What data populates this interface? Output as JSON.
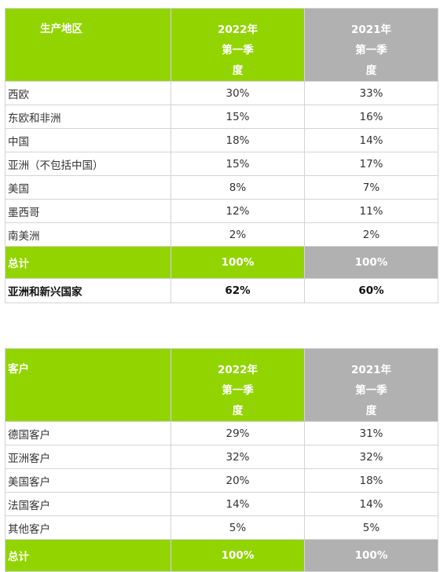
{
  "region_table": {
    "headers": {
      "label": "生产地区",
      "col1": [
        "2022年",
        "第一季",
        "度"
      ],
      "col2": [
        "2021年",
        "第一季",
        "度"
      ]
    },
    "rows": [
      {
        "label": "西欧",
        "y2022": "30%",
        "y2021": "33%"
      },
      {
        "label": "东欧和非洲",
        "y2022": "15%",
        "y2021": "16%"
      },
      {
        "label": "中国",
        "y2022": "18%",
        "y2021": "14%"
      },
      {
        "label": "亚洲（不包括中国）",
        "y2022": "15%",
        "y2021": "17%"
      },
      {
        "label": "美国",
        "y2022": "8%",
        "y2021": "7%"
      },
      {
        "label": "墨西哥",
        "y2022": "12%",
        "y2021": "11%"
      },
      {
        "label": "南美洲",
        "y2022": "2%",
        "y2021": "2%"
      }
    ],
    "total": {
      "label": "总计",
      "y2022": "100%",
      "y2021": "100%"
    },
    "summary": {
      "label": "亚洲和新兴国家",
      "y2022": "62%",
      "y2021": "60%"
    }
  },
  "customer_table": {
    "headers": {
      "label": "客户",
      "col1": [
        "2022年",
        "第一季",
        "度"
      ],
      "col2": [
        "2021年",
        "第一季",
        "度"
      ]
    },
    "rows": [
      {
        "label": "德国客户",
        "y2022": "29%",
        "y2021": "31%"
      },
      {
        "label": "亚洲客户",
        "y2022": "32%",
        "y2021": "32%"
      },
      {
        "label": "美国客户",
        "y2022": "20%",
        "y2021": "18%"
      },
      {
        "label": "法国客户",
        "y2022": "14%",
        "y2021": "14%"
      },
      {
        "label": "其他客户",
        "y2022": "5%",
        "y2021": "5%"
      }
    ],
    "total": {
      "label": "总计",
      "y2022": "100%",
      "y2021": "100%"
    }
  },
  "colors": {
    "accent_green": "#92d400",
    "header_gray": "#b1b1b1"
  }
}
